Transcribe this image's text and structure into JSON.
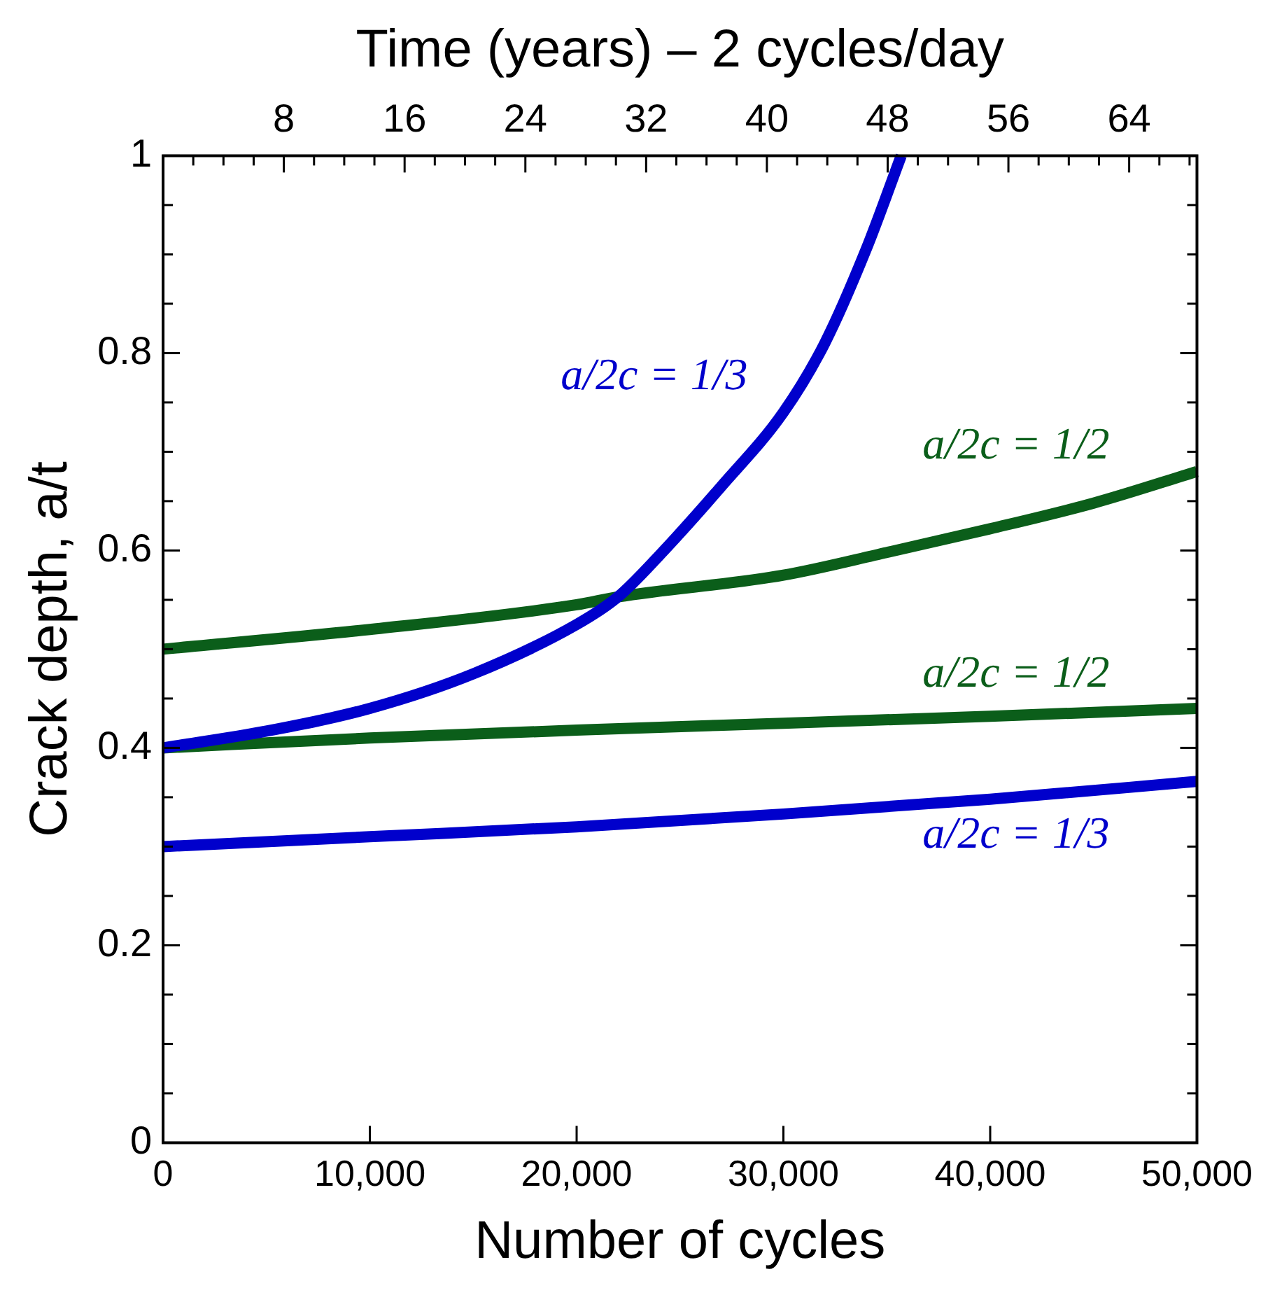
{
  "chart_data": {
    "type": "line",
    "xlabel": "Number of cycles",
    "ylabel": "Crack depth, a/t",
    "x2label": "Time (years) – 2 cycles/day",
    "xlim": [
      0,
      50000
    ],
    "xticks": [
      0,
      {
        "value": 10000,
        "label": "10,000"
      },
      {
        "value": 20000,
        "label": "20,000"
      },
      {
        "value": 30000,
        "label": "30,000"
      },
      {
        "value": 40000,
        "label": "40,000"
      },
      {
        "value": 50000,
        "label": "50,000"
      }
    ],
    "ylim": [
      0,
      1
    ],
    "yticks": [
      0,
      {
        "value": 0.05,
        "label": null
      },
      {
        "value": 0.1,
        "label": null
      },
      {
        "value": 0.15,
        "label": null
      },
      0.2,
      {
        "value": 0.25,
        "label": null
      },
      {
        "value": 0.3,
        "label": null
      },
      {
        "value": 0.35,
        "label": null
      },
      0.4,
      {
        "value": 0.45,
        "label": null
      },
      {
        "value": 0.5,
        "label": null
      },
      {
        "value": 0.55,
        "label": null
      },
      0.6,
      {
        "value": 0.65,
        "label": null
      },
      {
        "value": 0.7,
        "label": null
      },
      {
        "value": 0.75,
        "label": null
      },
      0.8,
      {
        "value": 0.85,
        "label": null
      },
      {
        "value": 0.9,
        "label": null
      },
      {
        "value": 0.95,
        "label": null
      },
      1
    ],
    "x2lim": [
      0,
      68.49
    ],
    "x2ticks": [
      {
        "value": 2,
        "label": null
      },
      {
        "value": 4,
        "label": null
      },
      {
        "value": 6,
        "label": null
      },
      8,
      {
        "value": 10,
        "label": null
      },
      {
        "value": 12,
        "label": null
      },
      {
        "value": 14,
        "label": null
      },
      16,
      {
        "value": 18,
        "label": null
      },
      {
        "value": 20,
        "label": null
      },
      {
        "value": 22,
        "label": null
      },
      24,
      {
        "value": 26,
        "label": null
      },
      {
        "value": 28,
        "label": null
      },
      {
        "value": 30,
        "label": null
      },
      32,
      {
        "value": 34,
        "label": null
      },
      {
        "value": 36,
        "label": null
      },
      {
        "value": 38,
        "label": null
      },
      40,
      {
        "value": 42,
        "label": null
      },
      {
        "value": 44,
        "label": null
      },
      {
        "value": 46,
        "label": null
      },
      48,
      {
        "value": 50,
        "label": null
      },
      {
        "value": 52,
        "label": null
      },
      {
        "value": 54,
        "label": null
      },
      56,
      {
        "value": 58,
        "label": null
      },
      {
        "value": 60,
        "label": null
      },
      {
        "value": 62,
        "label": null
      },
      64,
      {
        "value": 66,
        "label": null
      },
      {
        "value": 68,
        "label": null
      }
    ],
    "marker": "none",
    "line_style": "solid",
    "series": [
      {
        "name": "a/2c = 1/3",
        "color": "#0000cc",
        "x": [
          0,
          5000,
          10000,
          15000,
          20000,
          22000,
          24000,
          27000,
          30000,
          32000,
          34000,
          35700
        ],
        "values": [
          0.4,
          0.417,
          0.44,
          0.475,
          0.525,
          0.553,
          0.595,
          0.665,
          0.74,
          0.81,
          0.905,
          1.0
        ]
      },
      {
        "name": "a/2c = 1/2",
        "color": "#0b5e1a",
        "x": [
          0,
          10000,
          20000,
          22000,
          30000,
          35000,
          40000,
          45000,
          50000
        ],
        "values": [
          0.5,
          0.52,
          0.545,
          0.553,
          0.575,
          0.598,
          0.622,
          0.648,
          0.68
        ]
      },
      {
        "name": "a/2c = 1/2",
        "color": "#0b5e1a",
        "x": [
          0,
          10000,
          20000,
          30000,
          40000,
          50000
        ],
        "values": [
          0.4,
          0.41,
          0.418,
          0.425,
          0.432,
          0.44
        ]
      },
      {
        "name": "a/2c = 1/3",
        "color": "#0000cc",
        "x": [
          0,
          10000,
          20000,
          30000,
          40000,
          50000
        ],
        "values": [
          0.3,
          0.31,
          0.32,
          0.333,
          0.348,
          0.366
        ]
      }
    ]
  }
}
